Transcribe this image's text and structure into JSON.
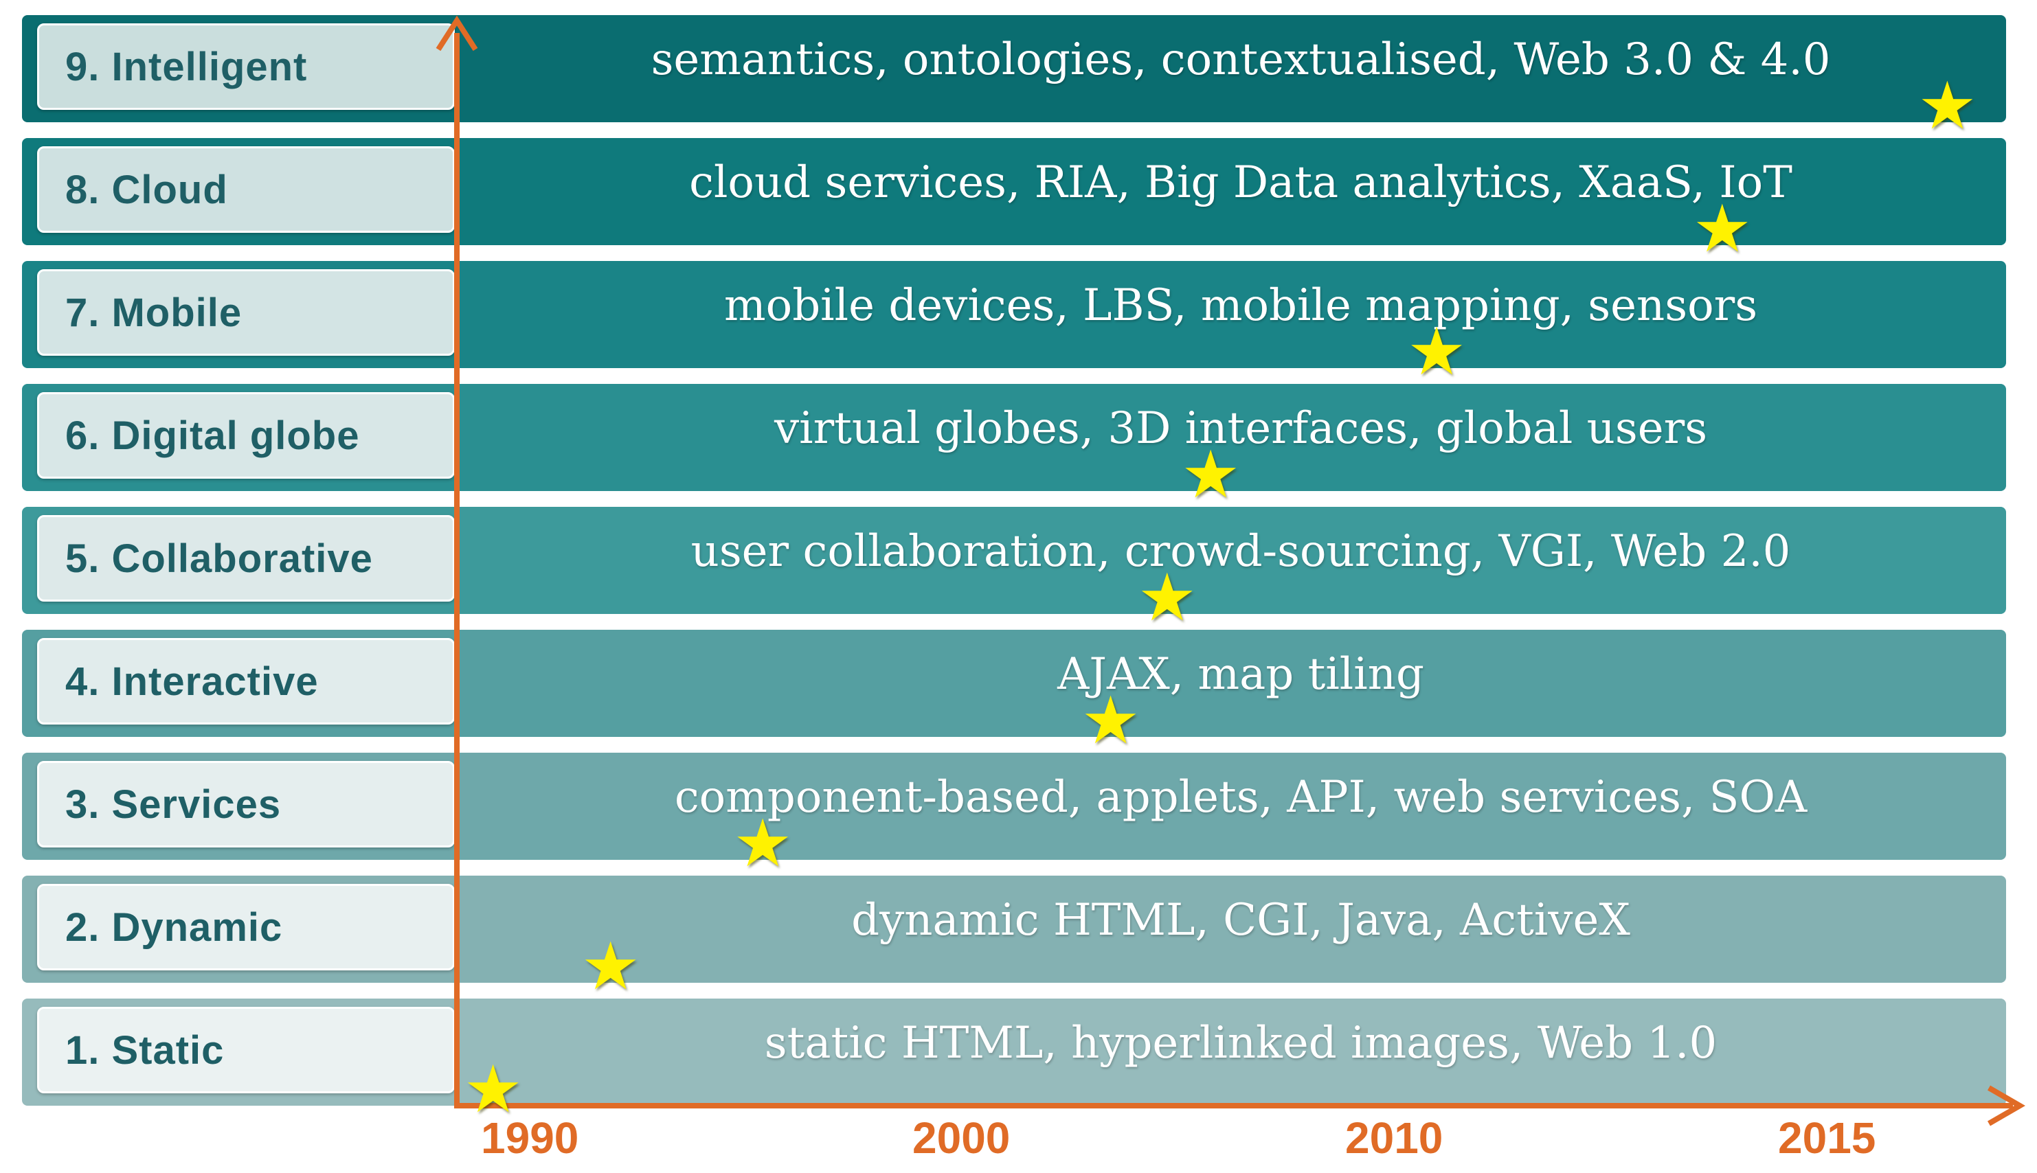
{
  "layers": [
    {
      "label": "9. Intelligent",
      "description": "semantics, ontologies, contextualised, Web 3.0 & 4.0",
      "year": 2016.4
    },
    {
      "label": "8. Cloud",
      "description": "cloud services, RIA, Big Data analytics, XaaS, IoT",
      "year": 2013.8
    },
    {
      "label": "7. Mobile",
      "description": "mobile devices, LBS, mobile mapping, sensors",
      "year": 2010.5
    },
    {
      "label": "6. Digital  globe",
      "description": "virtual globes, 3D interfaces, global users",
      "year": 2005.8
    },
    {
      "label": "5. Collaborative",
      "description": "user collaboration, crowd-sourcing, VGI, Web 2.0",
      "year": 2004.8
    },
    {
      "label": "4. Interactive",
      "description": "AJAX, map tiling",
      "year": 2003.5
    },
    {
      "label": "3. Services",
      "description": "component-based, applets, API, web services, SOA",
      "year": 1995.5
    },
    {
      "label": "2. Dynamic",
      "description": "dynamic HTML, CGI, Java, ActiveX",
      "year": 1992.0
    },
    {
      "label": "1. Static",
      "description": "static HTML, hyperlinked images, Web 1.0",
      "year": 1989.3
    }
  ],
  "axis": {
    "ticks": [
      "1990",
      "2000",
      "2010",
      "2015"
    ],
    "color": "#e06b26"
  },
  "icons": {
    "marker": "star-icon"
  },
  "colors": {
    "star": "#fff200",
    "label_text": "#1f5f66"
  }
}
